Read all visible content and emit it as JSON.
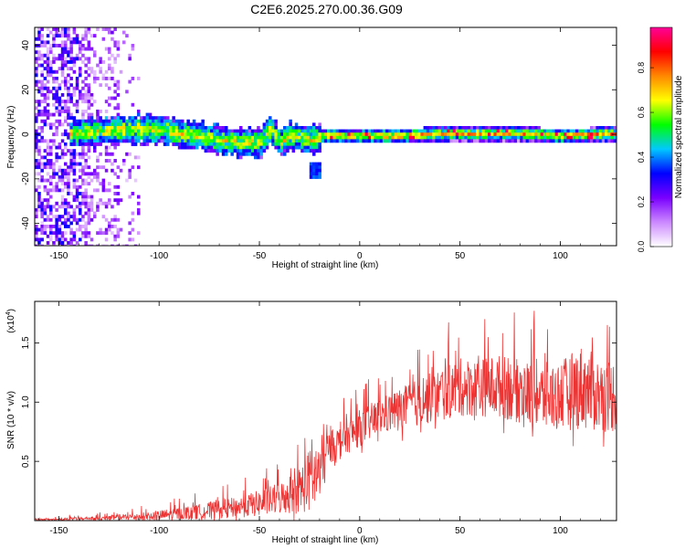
{
  "title": "C2E6.2025.270.00.36.G09",
  "chart_data": [
    {
      "type": "heatmap",
      "title": "C2E6.2025.270.00.36.G09",
      "xlabel": "Height of straight line (km)",
      "ylabel": "Frequency (Hz)",
      "xlim": [
        -162,
        128
      ],
      "ylim": [
        -50,
        48
      ],
      "xticks": [
        -150,
        -100,
        -50,
        0,
        50,
        100
      ],
      "yticks": [
        -40,
        -20,
        0,
        20,
        40
      ],
      "colorbar": {
        "label": "Normalized spectral amplitude",
        "range": [
          0,
          0.98
        ],
        "ticks": [
          "0.0",
          "0.2",
          "0.4",
          "0.6",
          "0.8"
        ],
        "colormap": [
          "#ffffff",
          "#cc88ff",
          "#7a00ff",
          "#0000ff",
          "#00c8ff",
          "#00ff00",
          "#ffff00",
          "#ff8800",
          "#ff0000",
          "#ff0099"
        ]
      },
      "signal_track": {
        "x": [
          -145,
          -130,
          -115,
          -100,
          -90,
          -80,
          -70,
          -60,
          -50,
          -45,
          -40,
          -35,
          -30,
          -25,
          -20,
          -10,
          0,
          20,
          40,
          60,
          80,
          100,
          128
        ],
        "y": [
          1,
          2,
          3,
          3,
          1,
          0,
          -2,
          -3,
          -3,
          3,
          -3,
          0,
          -1,
          -2,
          0,
          0,
          0,
          0,
          1,
          1,
          1,
          0,
          1
        ]
      }
    },
    {
      "type": "line",
      "xlabel": "Height of straight line (km)",
      "ylabel": "SNR (10 * v/v)",
      "yscale_label": "(x10",
      "yscale_exp": "4",
      "xlim": [
        -162,
        128
      ],
      "ylim": [
        0,
        1.85
      ],
      "xticks": [
        -150,
        -100,
        -50,
        0,
        50,
        100
      ],
      "yticks": [
        0.5,
        1.0,
        1.5
      ],
      "ytick_labels": [
        "0.5",
        "1.0",
        "1.5"
      ],
      "color": "#ee3333",
      "envelope": {
        "x": [
          -162,
          -150,
          -120,
          -100,
          -80,
          -60,
          -50,
          -40,
          -30,
          -25,
          -20,
          -15,
          -10,
          0,
          10,
          20,
          30,
          40,
          50,
          60,
          70,
          80,
          90,
          100,
          110,
          120,
          128
        ],
        "baseline": [
          0.0,
          0.0,
          0.01,
          0.02,
          0.04,
          0.07,
          0.09,
          0.12,
          0.16,
          0.2,
          0.25,
          0.55,
          0.6,
          0.7,
          0.8,
          0.85,
          0.9,
          0.95,
          1.0,
          1.0,
          1.0,
          0.95,
          0.9,
          0.9,
          0.95,
          0.9,
          0.9
        ],
        "amplitude": [
          0.02,
          0.03,
          0.06,
          0.1,
          0.15,
          0.2,
          0.25,
          0.3,
          0.45,
          0.6,
          0.7,
          0.3,
          0.3,
          0.35,
          0.35,
          0.4,
          0.45,
          0.5,
          0.55,
          0.55,
          0.6,
          0.6,
          0.65,
          0.65,
          0.8,
          0.7,
          0.7
        ]
      }
    }
  ]
}
